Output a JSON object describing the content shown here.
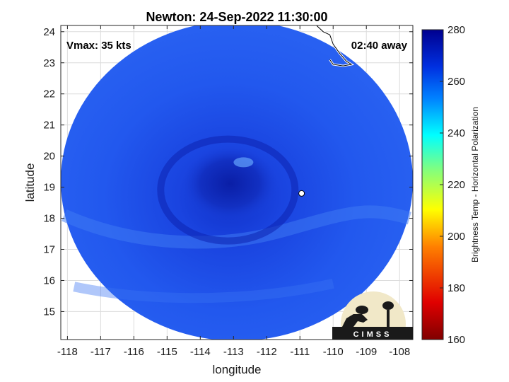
{
  "chart_data": {
    "type": "heatmap",
    "title": "Newton: 24-Sep-2022 11:30:00",
    "xlabel": "longitude",
    "ylabel": "latitude",
    "xlim": [
      -118.2,
      -107.6
    ],
    "ylim": [
      14.1,
      24.2
    ],
    "x_ticks": [
      -118,
      -117,
      -116,
      -115,
      -114,
      -113,
      -112,
      -111,
      -110,
      -109,
      -108
    ],
    "y_ticks": [
      15,
      16,
      17,
      18,
      19,
      20,
      21,
      22,
      23,
      24
    ],
    "colorbar": {
      "label": "Brightness Temp - Horizontal Polarization",
      "range": [
        160,
        280
      ],
      "ticks": [
        160,
        180,
        200,
        220,
        240,
        260,
        280
      ]
    },
    "grid": true,
    "annotations": {
      "vmax": "Vmax: 35 kts",
      "time_offset": "02:40 away"
    },
    "features": {
      "storm_center": {
        "lon": -113.0,
        "lat": 19.0,
        "value": 270
      },
      "background_value": 258,
      "coastline": [
        [
          -110.5,
          24.2
        ],
        [
          -110.3,
          24.0
        ],
        [
          -110.1,
          23.9
        ],
        [
          -110.0,
          23.6
        ],
        [
          -109.8,
          23.3
        ],
        [
          -109.6,
          23.05
        ],
        [
          -109.45,
          22.95
        ],
        [
          -109.7,
          22.9
        ],
        [
          -110.0,
          22.95
        ],
        [
          -110.1,
          23.1
        ]
      ],
      "island": {
        "lon": -110.95,
        "lat": 18.8
      }
    }
  },
  "logo": {
    "text": "CIMSS"
  }
}
